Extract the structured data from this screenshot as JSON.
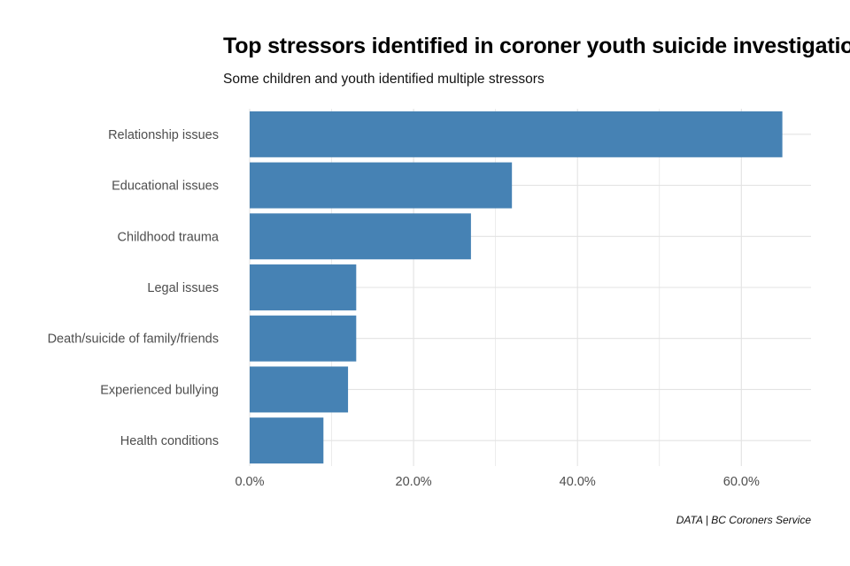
{
  "chart_data": {
    "type": "bar",
    "orientation": "horizontal",
    "title": "Top stressors identified in coroner youth suicide investigations",
    "subtitle": "Some children and youth identified multiple stressors",
    "caption": "DATA | BC Coroners Service",
    "xlabel": "",
    "ylabel": "",
    "categories": [
      "Relationship issues",
      "Educational issues",
      "Childhood trauma",
      "Legal issues",
      "Death/suicide of family/friends",
      "Experienced bullying",
      "Health conditions"
    ],
    "values": [
      65,
      32,
      27,
      13,
      13,
      12,
      9
    ],
    "value_unit": "percent",
    "xlim": [
      0,
      68.5
    ],
    "x_ticks": [
      0,
      20,
      40,
      60
    ],
    "x_tick_labels": [
      "0.0%",
      "20.0%",
      "40.0%",
      "60.0%"
    ],
    "grid": true,
    "bar_color": "#4682b4",
    "grid_color": "#e3e3e3"
  }
}
